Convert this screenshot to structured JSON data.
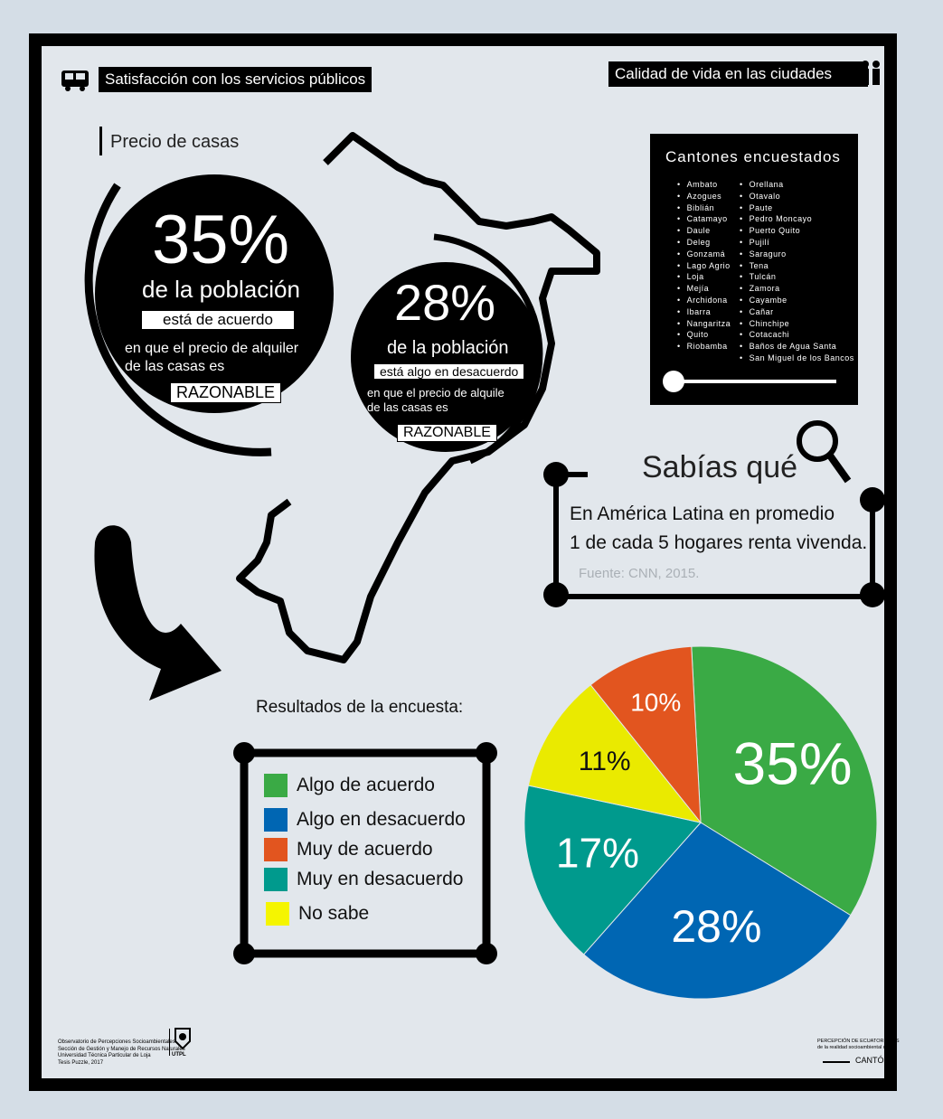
{
  "header": {
    "left_title": "Satisfacción con los servicios públicos",
    "right_title": "Calidad de vida en las ciudades",
    "bus_icon": "bus-icon",
    "people_icon": "people-icon"
  },
  "section_title": "Precio de casas",
  "stat_main": {
    "percent": "35%",
    "line1": "de la población",
    "tag": "está de acuerdo",
    "line2": "en que el precio de alquiler",
    "line3": "de las casas es",
    "highlight": "RAZONABLE"
  },
  "stat_secondary": {
    "percent": "28%",
    "line1": "de la población",
    "tag": "está algo en desacuerdo",
    "line2": "en que el precio de alquile",
    "line3": "de las casas es",
    "highlight": "RAZONABLE"
  },
  "cantones": {
    "title": "Cantones encuestados",
    "col1": [
      "Ambato",
      "Azogues",
      "Biblián",
      "Catamayo",
      "Daule",
      "Deleg",
      "Gonzamá",
      "Lago Agrio",
      "Loja",
      "Mejía",
      "Archidona",
      "Ibarra",
      "Nangaritza",
      "Quito",
      "Riobamba"
    ],
    "col2": [
      "Orellana",
      "Otavalo",
      "Paute",
      "Pedro Moncayo",
      "Puerto Quito",
      "Pujilí",
      "Saraguro",
      "Tena",
      "Tulcán",
      "Zamora",
      "Cayambe",
      "Cañar",
      "Chinchipe",
      "Cotacachi",
      "Baños de Agua Santa",
      "San Miguel de los Bancos"
    ]
  },
  "sabias": {
    "title": "Sabías qué",
    "line1": "En América Latina en promedio",
    "line2": "1 de cada 5 hogares renta vivenda.",
    "source": "Fuente: CNN, 2015.",
    "icon": "magnifier-icon"
  },
  "results_title": "Resultados de la encuesta:",
  "colors": {
    "green": "#3aaa45",
    "blue": "#0066b3",
    "orange": "#e2551f",
    "teal": "#009a8d",
    "yellow": "#eaea00"
  },
  "chart_data": {
    "type": "pie",
    "categories": [
      "Algo de acuerdo",
      "Algo en desacuerdo",
      "Muy de acuerdo",
      "Muy en desacuerdo",
      "No sabe"
    ],
    "legend_colors": [
      "#3aaa45",
      "#0066b3",
      "#e2551f",
      "#009a8d",
      "#f5f500"
    ],
    "slices": [
      {
        "label": "35%",
        "value": 35,
        "color": "#3aaa45"
      },
      {
        "label": "28%",
        "value": 28,
        "color": "#0066b3"
      },
      {
        "label": "17%",
        "value": 17,
        "color": "#009a8d"
      },
      {
        "label": "11%",
        "value": 11,
        "color": "#eaea00"
      },
      {
        "label": "10%",
        "value": 10,
        "color": "#e2551f"
      }
    ]
  },
  "footer": {
    "left_lines": [
      "Observatorio de Percepciones Socioambientales",
      "Sección de Gestión y Manejo de Recursos Naturales",
      "Universidad Técnica Particular de Loja",
      "Tesis Puzzle, 2017"
    ],
    "utpl": "UTPL",
    "right_line1": "PERCEPCIÓN DE ECUATORIANOS",
    "right_line2": "de la realidad socioambiental de su",
    "right_line3": "CANTÓN"
  }
}
